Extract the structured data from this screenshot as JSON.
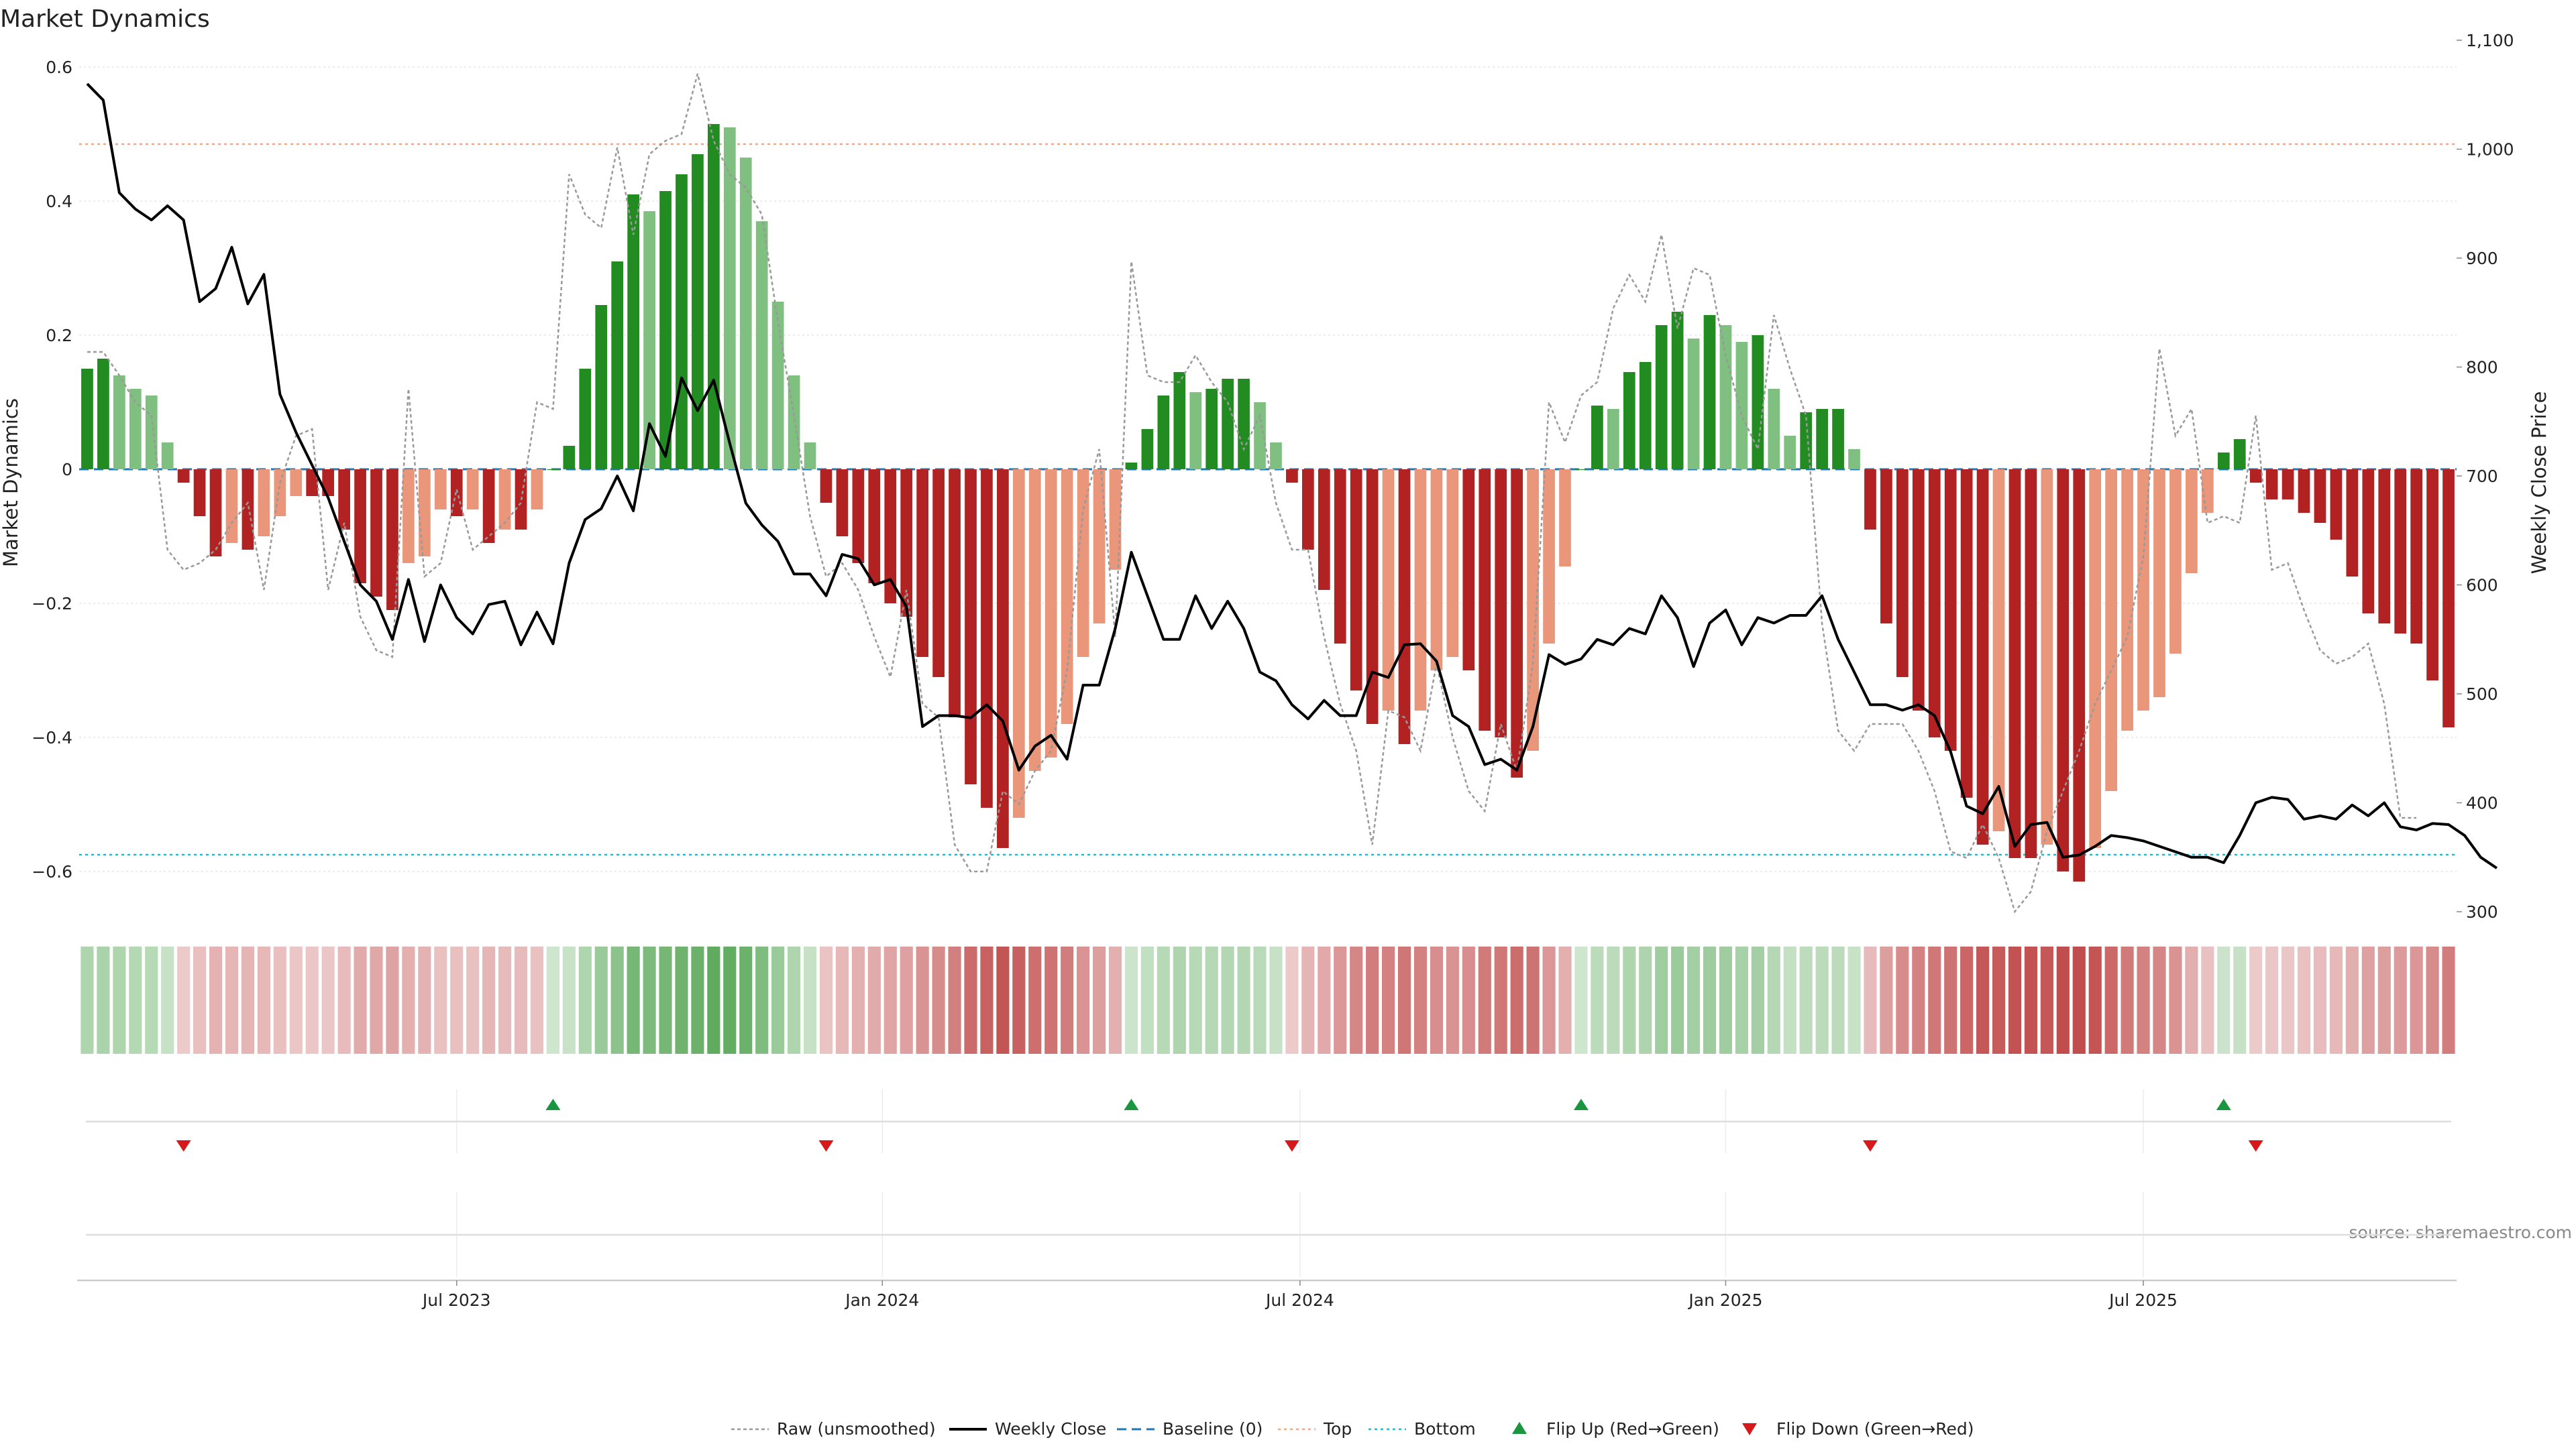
{
  "chart_data": {
    "type": "bar",
    "title": "Market Dynamics",
    "ylabel": "Market Dynamics",
    "y2label": "Weekly Close Price",
    "source": "source: sharemaestro.com",
    "ylim": [
      -0.66,
      0.64
    ],
    "y2lim": [
      300,
      1100
    ],
    "yticks": [
      0.6,
      0.4,
      0.2,
      0,
      -0.2,
      -0.4,
      -0.6
    ],
    "ytick_labels": [
      "0.6",
      "0.4",
      "0.2",
      "0",
      "−0.2",
      "−0.4",
      "−0.6"
    ],
    "y2ticks": [
      1100,
      1000,
      900,
      800,
      700,
      600,
      500,
      400,
      300
    ],
    "y2tick_labels": [
      "1,100",
      "1,000",
      "900",
      "800",
      "700",
      "600",
      "500",
      "400",
      "300"
    ],
    "xtick_labels": [
      "Jul 2023",
      "Jan 2024",
      "Jul 2024",
      "Jan 2025",
      "Jul 2025"
    ],
    "xtick_index": [
      23,
      49.5,
      75.5,
      102,
      128
    ],
    "top_line": 0.485,
    "bottom_line": -0.575,
    "baseline": 0,
    "legend": [
      "Raw (unsmoothed)",
      "Weekly Close",
      "Baseline (0)",
      "Top",
      "Bottom",
      "Flip Up (Red→Green)",
      "Flip Down (Green→Red)"
    ],
    "colors": {
      "pos_strong": "#228b22",
      "pos_weak": "#7fbf7f",
      "neg_strong": "#b22222",
      "neg_weak": "#e9967a",
      "raw": "#999999",
      "close": "#000000",
      "baseline": "#1f77b4",
      "top": "#f4a582",
      "bottom": "#17becf",
      "flip_up": "#1a9641",
      "flip_down": "#d7191c"
    },
    "bars": [
      0.15,
      0.165,
      0.14,
      0.12,
      0.11,
      0.04,
      -0.02,
      -0.07,
      -0.13,
      -0.11,
      -0.12,
      -0.1,
      -0.07,
      -0.04,
      -0.04,
      -0.04,
      -0.09,
      -0.17,
      -0.19,
      -0.21,
      -0.14,
      -0.13,
      -0.06,
      -0.07,
      -0.06,
      -0.11,
      -0.09,
      -0.09,
      -0.06,
      0,
      0.035,
      0.15,
      0.245,
      0.31,
      0.41,
      0.385,
      0.415,
      0.44,
      0.47,
      0.515,
      0.51,
      0.465,
      0.37,
      0.25,
      0.14,
      0.04,
      -0.05,
      -0.1,
      -0.14,
      -0.17,
      -0.2,
      -0.22,
      -0.28,
      -0.31,
      -0.37,
      -0.47,
      -0.505,
      -0.565,
      -0.52,
      -0.45,
      -0.43,
      -0.38,
      -0.28,
      -0.23,
      -0.15,
      0.01,
      0.06,
      0.11,
      0.145,
      0.115,
      0.12,
      0.135,
      0.135,
      0.1,
      0.04,
      -0.02,
      -0.12,
      -0.18,
      -0.26,
      -0.33,
      -0.38,
      -0.36,
      -0.41,
      -0.36,
      -0.3,
      -0.28,
      -0.3,
      -0.39,
      -0.4,
      -0.46,
      -0.42,
      -0.26,
      -0.145,
      0,
      0.095,
      0.09,
      0.145,
      0.16,
      0.215,
      0.235,
      0.195,
      0.23,
      0.215,
      0.19,
      0.2,
      0.12,
      0.05,
      0.085,
      0.09,
      0.09,
      0.03,
      -0.09,
      -0.23,
      -0.31,
      -0.36,
      -0.4,
      -0.42,
      -0.49,
      -0.56,
      -0.54,
      -0.58,
      -0.58,
      -0.56,
      -0.6,
      -0.615,
      -0.565,
      -0.48,
      -0.39,
      -0.36,
      -0.34,
      -0.275,
      -0.155,
      -0.065,
      0.025,
      0.045,
      -0.02,
      -0.045,
      -0.045,
      -0.065,
      -0.08,
      -0.105,
      -0.16,
      -0.215,
      -0.23,
      -0.245,
      -0.26,
      -0.315,
      -0.385
    ],
    "raw": [
      0.175,
      0.175,
      0.14,
      0.1,
      0.08,
      -0.12,
      -0.15,
      -0.14,
      -0.12,
      -0.08,
      -0.05,
      -0.18,
      -0.02,
      0.05,
      0.06,
      -0.18,
      -0.08,
      -0.22,
      -0.27,
      -0.28,
      0.12,
      -0.16,
      -0.14,
      -0.03,
      -0.12,
      -0.1,
      -0.08,
      -0.05,
      0.1,
      0.09,
      0.44,
      0.38,
      0.36,
      0.48,
      0.35,
      0.47,
      0.49,
      0.5,
      0.59,
      0.49,
      0.44,
      0.42,
      0.38,
      0.22,
      0.08,
      -0.07,
      -0.16,
      -0.14,
      -0.18,
      -0.25,
      -0.31,
      -0.18,
      -0.35,
      -0.37,
      -0.56,
      -0.6,
      -0.6,
      -0.48,
      -0.5,
      -0.45,
      -0.42,
      -0.3,
      -0.06,
      0.03,
      -0.25,
      0.31,
      0.14,
      0.13,
      0.13,
      0.17,
      0.13,
      0.1,
      0.03,
      0.08,
      -0.05,
      -0.12,
      -0.12,
      -0.25,
      -0.35,
      -0.42,
      -0.56,
      -0.36,
      -0.37,
      -0.42,
      -0.29,
      -0.4,
      -0.48,
      -0.51,
      -0.38,
      -0.45,
      -0.29,
      0.1,
      0.04,
      0.11,
      0.13,
      0.24,
      0.29,
      0.25,
      0.35,
      0.21,
      0.3,
      0.29,
      0.17,
      0.08,
      0.03,
      0.23,
      0.15,
      0.08,
      -0.23,
      -0.39,
      -0.42,
      -0.38,
      -0.38,
      -0.38,
      -0.42,
      -0.48,
      -0.57,
      -0.58,
      -0.53,
      -0.58,
      -0.66,
      -0.63,
      -0.54,
      -0.48,
      -0.42,
      -0.35,
      -0.3,
      -0.25,
      -0.13,
      0.18,
      0.05,
      0.09,
      -0.08,
      -0.07,
      -0.08,
      0.08,
      -0.15,
      -0.14,
      -0.21,
      -0.27,
      -0.29,
      -0.28,
      -0.26,
      -0.35,
      -0.52,
      -0.52
    ],
    "close": [
      1060,
      1045,
      960,
      945,
      935,
      948,
      935,
      860,
      872,
      910,
      858,
      885,
      775,
      740,
      710,
      680,
      640,
      600,
      585,
      550,
      605,
      548,
      600,
      570,
      555,
      582,
      585,
      545,
      575,
      546,
      620,
      660,
      670,
      700,
      668,
      748,
      718,
      790,
      760,
      788,
      730,
      675,
      655,
      640,
      610,
      610,
      590,
      628,
      624,
      600,
      605,
      580,
      470,
      480,
      480,
      478,
      490,
      475,
      430,
      452,
      462,
      440,
      508,
      508,
      560,
      630,
      590,
      550,
      550,
      590,
      560,
      585,
      560,
      520,
      512,
      490,
      477,
      494,
      480,
      480,
      520,
      515,
      545,
      546,
      530,
      480,
      470,
      435,
      440,
      430,
      470,
      536,
      527,
      532,
      550,
      545,
      560,
      555,
      590,
      570,
      525,
      565,
      577,
      545,
      570,
      565,
      572,
      572,
      590,
      550,
      520,
      490,
      490,
      485,
      490,
      480,
      447,
      397,
      390,
      415,
      360,
      380,
      382,
      350,
      352,
      360,
      370,
      368,
      365,
      360,
      355,
      350,
      350,
      345,
      370,
      400,
      405,
      403,
      385,
      388,
      385,
      398,
      388,
      400,
      378,
      375,
      381,
      380,
      370,
      350,
      340
    ]
  }
}
